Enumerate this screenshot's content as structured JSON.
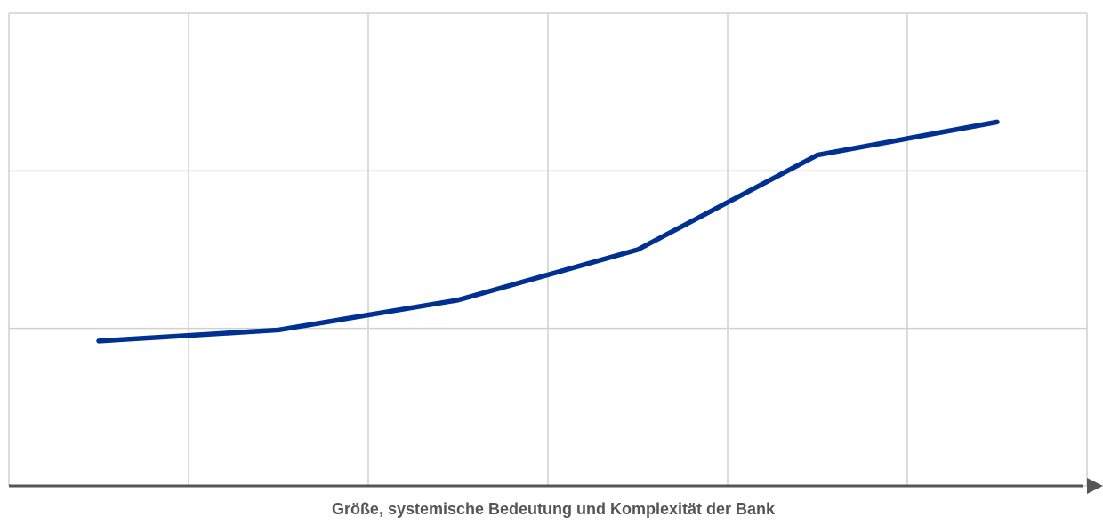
{
  "chart_data": {
    "type": "line",
    "xlabel": "Größe, systemische Bedeutung und Komplexität der Bank",
    "categories": [
      null,
      null,
      null,
      null,
      null,
      null
    ],
    "series": [
      {
        "color": "#003092",
        "values": [
          0.92,
          0.99,
          1.18,
          1.5,
          2.1,
          2.31
        ]
      }
    ],
    "ylim": [
      0,
      3
    ],
    "yticks": [
      0,
      1,
      2,
      3
    ],
    "grid": true
  }
}
